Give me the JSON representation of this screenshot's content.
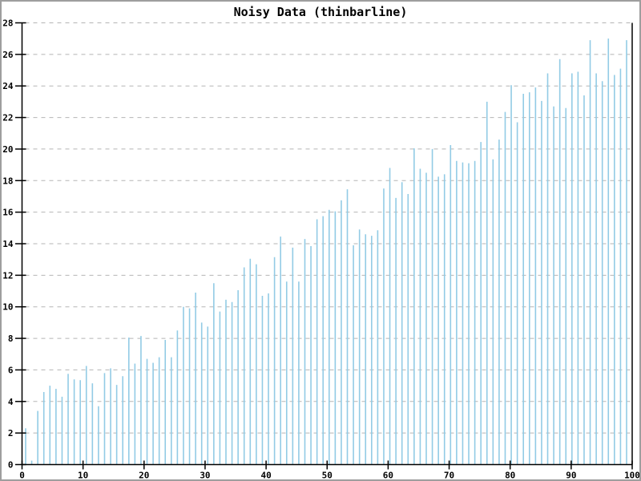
{
  "window": {
    "background": "#ffffff",
    "frame_color": "#9e9e9e"
  },
  "chart": {
    "title": "Noisy Data (thinbarline)",
    "colors": {
      "bar": "#92CBE5",
      "grid": "#b5b5b5",
      "axis": "#000000",
      "text": "#000000"
    }
  },
  "chart_data": {
    "type": "bar",
    "style": "thinbarline",
    "title": "Noisy Data (thinbarline)",
    "xlabel": "",
    "ylabel": "",
    "xlim": [
      0,
      100
    ],
    "ylim": [
      0,
      28
    ],
    "x_tick_step": 10,
    "y_tick_step": 2,
    "x_tick_labels": [
      "0",
      "10",
      "20",
      "30",
      "40",
      "50",
      "60",
      "70",
      "80",
      "90",
      "100"
    ],
    "y_tick_labels": [
      "0",
      "2",
      "4",
      "6",
      "8",
      "10",
      "12",
      "14",
      "16",
      "18",
      "20",
      "22",
      "24",
      "26",
      "28"
    ],
    "grid": "horizontal-dashed",
    "legend": "none",
    "x": [
      1,
      2,
      3,
      4,
      5,
      6,
      7,
      8,
      9,
      10,
      11,
      12,
      13,
      14,
      15,
      16,
      17,
      18,
      19,
      20,
      21,
      22,
      23,
      24,
      25,
      26,
      27,
      28,
      29,
      30,
      31,
      32,
      33,
      34,
      35,
      36,
      37,
      38,
      39,
      40,
      41,
      42,
      43,
      44,
      45,
      46,
      47,
      48,
      49,
      50,
      51,
      52,
      53,
      54,
      55,
      56,
      57,
      58,
      59,
      60,
      61,
      62,
      63,
      64,
      65,
      66,
      67,
      68,
      69,
      70,
      71,
      72,
      73,
      74,
      75,
      76,
      77,
      78,
      79,
      80,
      81,
      82,
      83,
      84,
      85,
      86,
      87,
      88,
      89,
      90,
      91,
      92,
      93,
      94,
      95,
      96,
      97,
      98,
      99,
      100
    ],
    "values": [
      2.3,
      0.25,
      3.4,
      4.6,
      5.0,
      4.8,
      4.3,
      5.75,
      5.4,
      5.35,
      6.25,
      5.15,
      3.7,
      5.8,
      6.1,
      5.05,
      5.6,
      8.05,
      6.4,
      8.15,
      6.7,
      6.45,
      6.8,
      7.9,
      6.8,
      8.5,
      10.0,
      9.9,
      10.9,
      9.0,
      8.75,
      11.5,
      9.7,
      10.45,
      10.3,
      11.05,
      12.5,
      13.05,
      12.7,
      10.7,
      10.85,
      13.15,
      14.45,
      11.6,
      13.75,
      11.6,
      14.3,
      13.85,
      15.55,
      15.75,
      16.15,
      16.05,
      16.75,
      17.45,
      13.9,
      14.9,
      14.6,
      14.5,
      14.85,
      17.5,
      18.8,
      16.9,
      17.9,
      17.15,
      20.05,
      18.75,
      18.5,
      20.0,
      18.25,
      18.4,
      20.25,
      19.25,
      19.15,
      19.1,
      19.25,
      20.45,
      23.0,
      19.35,
      20.6,
      22.35,
      24.05,
      21.7,
      23.5,
      23.6,
      23.9,
      23.05,
      24.8,
      22.7,
      25.7,
      22.6,
      24.8,
      24.9,
      23.4,
      26.9,
      24.8,
      24.3,
      27.0,
      24.7,
      25.1,
      26.9
    ]
  }
}
